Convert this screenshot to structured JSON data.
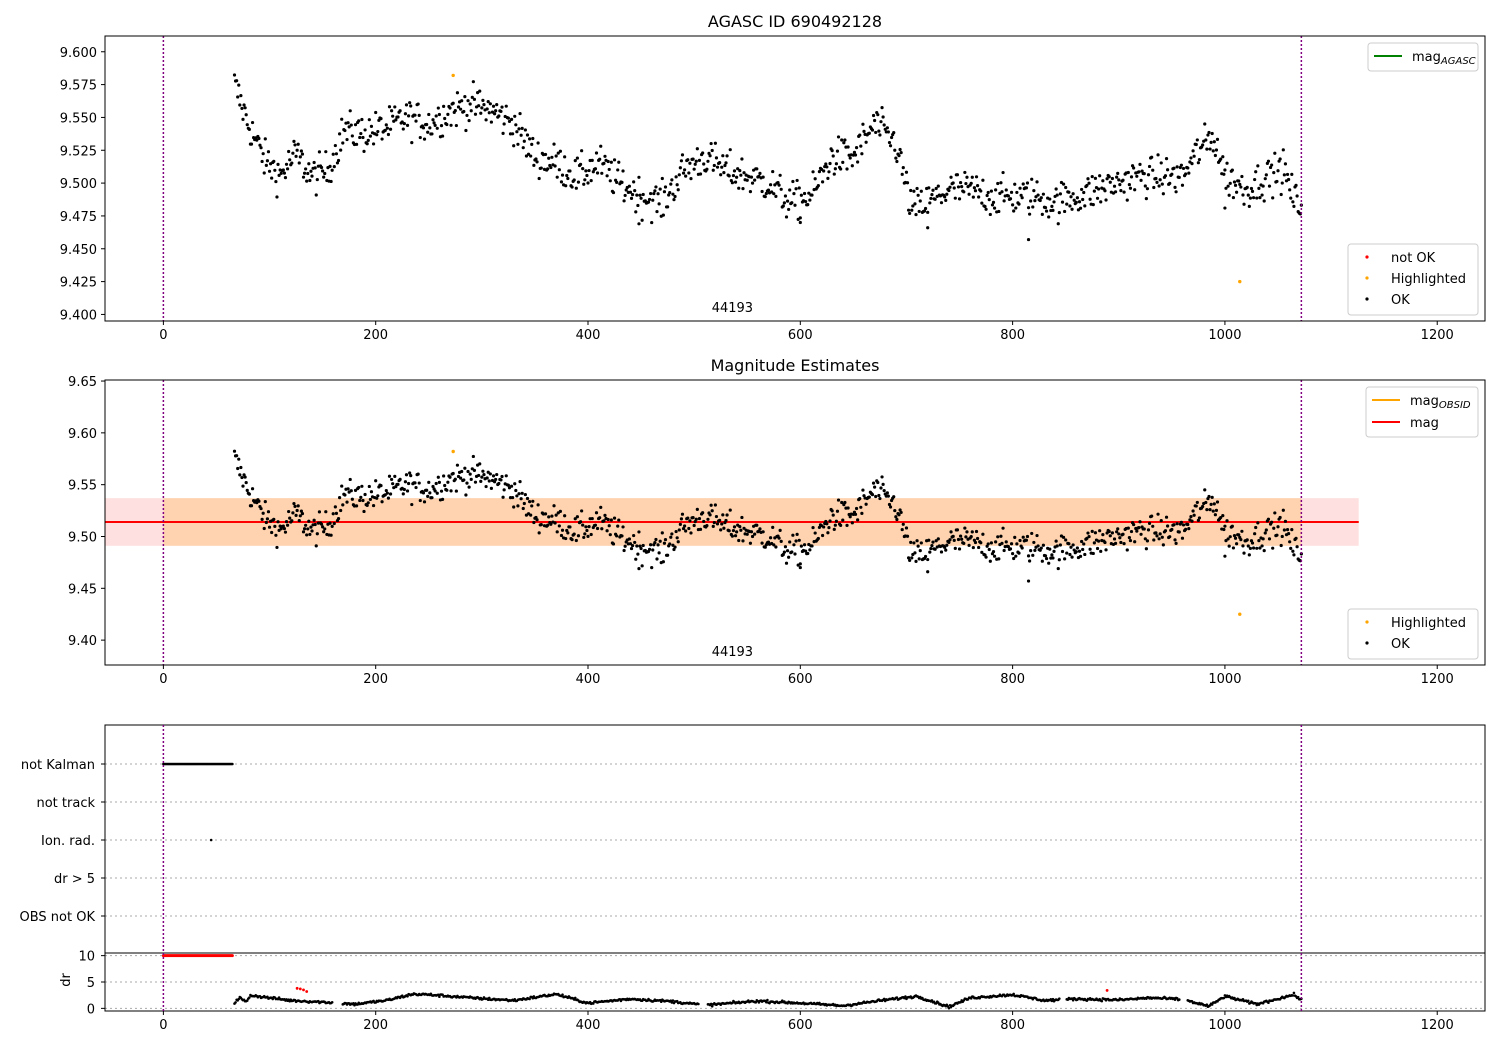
{
  "chart_data": [
    {
      "type": "scatter",
      "title": "AGASC ID 690492128",
      "xlim": [
        -55,
        1245
      ],
      "ylim": [
        9.395,
        9.612
      ],
      "xticks": [
        0,
        200,
        400,
        600,
        800,
        1000,
        1200
      ],
      "yticks": [
        "9.400",
        "9.425",
        "9.450",
        "9.475",
        "9.500",
        "9.525",
        "9.550",
        "9.575",
        "9.600"
      ],
      "obsid_label": "44193",
      "obsid_boundaries": [
        0,
        1072
      ],
      "legend_lines": [
        {
          "label": "mag",
          "subscript": "AGASC",
          "color": "#008000"
        }
      ],
      "legend_points": [
        {
          "label": "not OK",
          "color": "#ff0000"
        },
        {
          "label": "Highlighted",
          "color": "#ffa500"
        },
        {
          "label": "OK",
          "color": "#000000"
        }
      ],
      "highlighted": [
        [
          273,
          9.582
        ],
        [
          1014,
          9.425
        ]
      ],
      "ok_trend": [
        [
          67,
          9.575
        ],
        [
          80,
          9.545
        ],
        [
          95,
          9.518
        ],
        [
          110,
          9.506
        ],
        [
          125,
          9.522
        ],
        [
          140,
          9.505
        ],
        [
          155,
          9.51
        ],
        [
          170,
          9.54
        ],
        [
          190,
          9.538
        ],
        [
          210,
          9.542
        ],
        [
          230,
          9.55
        ],
        [
          250,
          9.545
        ],
        [
          270,
          9.555
        ],
        [
          290,
          9.56
        ],
        [
          310,
          9.555
        ],
        [
          330,
          9.545
        ],
        [
          350,
          9.52
        ],
        [
          370,
          9.515
        ],
        [
          390,
          9.505
        ],
        [
          410,
          9.515
        ],
        [
          430,
          9.5
        ],
        [
          450,
          9.49
        ],
        [
          470,
          9.485
        ],
        [
          490,
          9.51
        ],
        [
          510,
          9.52
        ],
        [
          530,
          9.51
        ],
        [
          550,
          9.505
        ],
        [
          570,
          9.5
        ],
        [
          590,
          9.485
        ],
        [
          610,
          9.49
        ],
        [
          630,
          9.52
        ],
        [
          650,
          9.52
        ],
        [
          670,
          9.545
        ],
        [
          690,
          9.53
        ],
        [
          705,
          9.48
        ],
        [
          720,
          9.485
        ],
        [
          740,
          9.495
        ],
        [
          760,
          9.495
        ],
        [
          780,
          9.49
        ],
        [
          800,
          9.49
        ],
        [
          820,
          9.49
        ],
        [
          840,
          9.485
        ],
        [
          860,
          9.49
        ],
        [
          880,
          9.495
        ],
        [
          900,
          9.5
        ],
        [
          920,
          9.505
        ],
        [
          940,
          9.505
        ],
        [
          960,
          9.505
        ],
        [
          975,
          9.525
        ],
        [
          990,
          9.535
        ],
        [
          1000,
          9.505
        ],
        [
          1020,
          9.495
        ],
        [
          1040,
          9.505
        ],
        [
          1055,
          9.51
        ],
        [
          1065,
          9.488
        ],
        [
          1072,
          9.482
        ]
      ],
      "ok_spread": 0.012,
      "ok_outliers": [
        [
          720,
          9.466
        ],
        [
          815,
          9.457
        ],
        [
          448,
          9.469
        ],
        [
          600,
          9.47
        ],
        [
          1000,
          9.481
        ]
      ]
    },
    {
      "type": "scatter",
      "title": "Magnitude Estimates",
      "xlim": [
        -55,
        1245
      ],
      "ylim": [
        9.376,
        9.651
      ],
      "xticks": [
        0,
        200,
        400,
        600,
        800,
        1000,
        1200
      ],
      "yticks": [
        "9.40",
        "9.45",
        "9.50",
        "9.55",
        "9.60",
        "9.65"
      ],
      "obsid_label": "44193",
      "obsid_boundaries": [
        0,
        1072
      ],
      "mag": 9.514,
      "mag_band": [
        9.491,
        9.537
      ],
      "band_x": [
        -55,
        1126
      ],
      "obsid_band_x": [
        0,
        1072
      ],
      "legend_lines": [
        {
          "label": "mag",
          "subscript": "OBSID",
          "color": "#ffa500"
        },
        {
          "label": "mag",
          "subscript": "",
          "color": "#ff0000"
        }
      ],
      "legend_points": [
        {
          "label": "Highlighted",
          "color": "#ffa500"
        },
        {
          "label": "OK",
          "color": "#000000"
        }
      ]
    },
    {
      "type": "scatter",
      "title": "",
      "xlim": [
        -55,
        1245
      ],
      "xticks": [
        0,
        200,
        400,
        600,
        800,
        1000,
        1200
      ],
      "flag_categories": [
        "not Kalman",
        "not track",
        "Ion. rad.",
        "dr > 5",
        "OBS not OK"
      ],
      "flags": {
        "not Kalman": [
          [
            0,
            65
          ]
        ],
        "not track": [],
        "Ion. rad.": [
          [
            45,
            45
          ]
        ],
        "dr > 5": [],
        "OBS not OK": []
      },
      "dr": {
        "ylabel": "dr",
        "yticks": [
          0,
          5,
          10
        ],
        "ylim": [
          -0.5,
          10.5
        ],
        "saturated_red": [
          [
            0,
            65,
            10
          ]
        ],
        "red_points": [
          [
            126,
            3.8
          ],
          [
            129,
            3.7
          ],
          [
            132,
            3.5
          ],
          [
            135,
            3.2
          ],
          [
            889,
            3.4
          ]
        ],
        "trend": [
          [
            67,
            1.1
          ],
          [
            72,
            2.0
          ],
          [
            78,
            1.2
          ],
          [
            82,
            2.5
          ],
          [
            100,
            2.0
          ],
          [
            120,
            1.5
          ],
          [
            150,
            1.2
          ],
          [
            180,
            0.8
          ],
          [
            210,
            1.5
          ],
          [
            235,
            2.7
          ],
          [
            250,
            2.6
          ],
          [
            290,
            2.0
          ],
          [
            330,
            1.5
          ],
          [
            370,
            2.7
          ],
          [
            400,
            1.0
          ],
          [
            440,
            1.8
          ],
          [
            480,
            1.3
          ],
          [
            510,
            0.6
          ],
          [
            560,
            1.4
          ],
          [
            600,
            1.0
          ],
          [
            640,
            0.5
          ],
          [
            680,
            1.6
          ],
          [
            710,
            2.3
          ],
          [
            740,
            0.3
          ],
          [
            760,
            2.0
          ],
          [
            800,
            2.6
          ],
          [
            830,
            1.5
          ],
          [
            860,
            1.8
          ],
          [
            900,
            1.6
          ],
          [
            930,
            2.0
          ],
          [
            960,
            1.7
          ],
          [
            985,
            0.4
          ],
          [
            1000,
            2.3
          ],
          [
            1030,
            0.8
          ],
          [
            1065,
            2.6
          ],
          [
            1072,
            1.6
          ]
        ],
        "gaps": [
          [
            160,
            168
          ],
          [
            505,
            512
          ],
          [
            845,
            850
          ],
          [
            958,
            964
          ]
        ]
      }
    }
  ]
}
